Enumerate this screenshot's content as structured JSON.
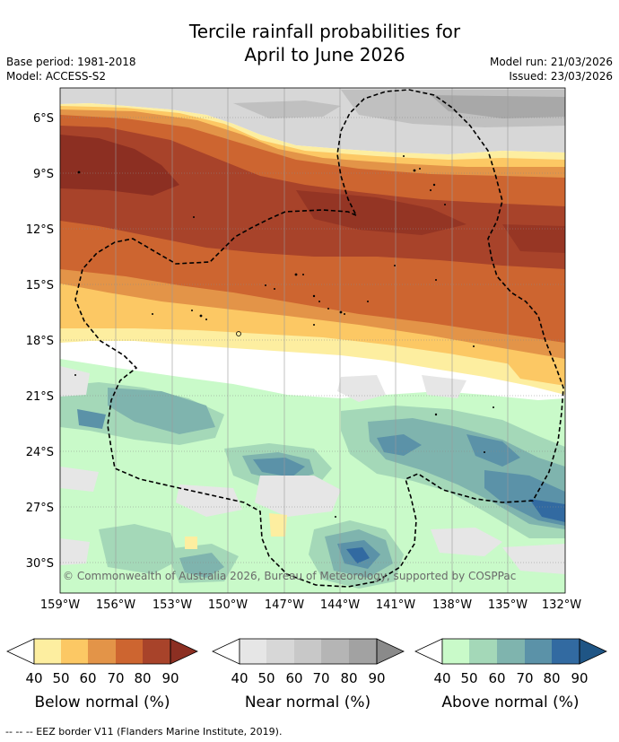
{
  "header": {
    "title_line1": "Tercile rainfall probabilities for",
    "title_line2": "April to June 2026",
    "base_period": "Base period: 1981-2018",
    "model": "Model: ACCESS-S2",
    "model_run": "Model run: 21/03/2026",
    "issued": "Issued: 23/03/2026"
  },
  "map": {
    "lat_labels": [
      "6°S",
      "9°S",
      "12°S",
      "15°S",
      "18°S",
      "21°S",
      "24°S",
      "27°S",
      "30°S"
    ],
    "lon_labels": [
      "159°W",
      "156°W",
      "153°W",
      "150°W",
      "147°W",
      "144°W",
      "141°W",
      "138°W",
      "135°W",
      "132°W"
    ],
    "copyright": "© Commonwealth of Australia 2026, Bureau of Meteorology, supported by COSPPac"
  },
  "colorbars": [
    {
      "title": "Below normal (%)",
      "ticks": [
        "40",
        "50",
        "60",
        "70",
        "80",
        "90"
      ],
      "colors": [
        "#fdeea0",
        "#fcc864",
        "#e39448",
        "#cd6530",
        "#a8432a",
        "#8c2f22"
      ]
    },
    {
      "title": "Near normal (%)",
      "ticks": [
        "40",
        "50",
        "60",
        "70",
        "80",
        "90"
      ],
      "colors": [
        "#e6e6e6",
        "#d7d7d7",
        "#c8c8c8",
        "#b5b5b5",
        "#a2a2a2",
        "#8a8a8a"
      ]
    },
    {
      "title": "Above normal (%)",
      "ticks": [
        "40",
        "50",
        "60",
        "70",
        "80",
        "90"
      ],
      "colors": [
        "#c9fac9",
        "#a4d8b8",
        "#7fb4ae",
        "#5b92a8",
        "#326aa1",
        "#1f5585"
      ]
    }
  ],
  "footer": "--  --  -- EEZ border V11 (Flanders Marine Institute, 2019)."
}
